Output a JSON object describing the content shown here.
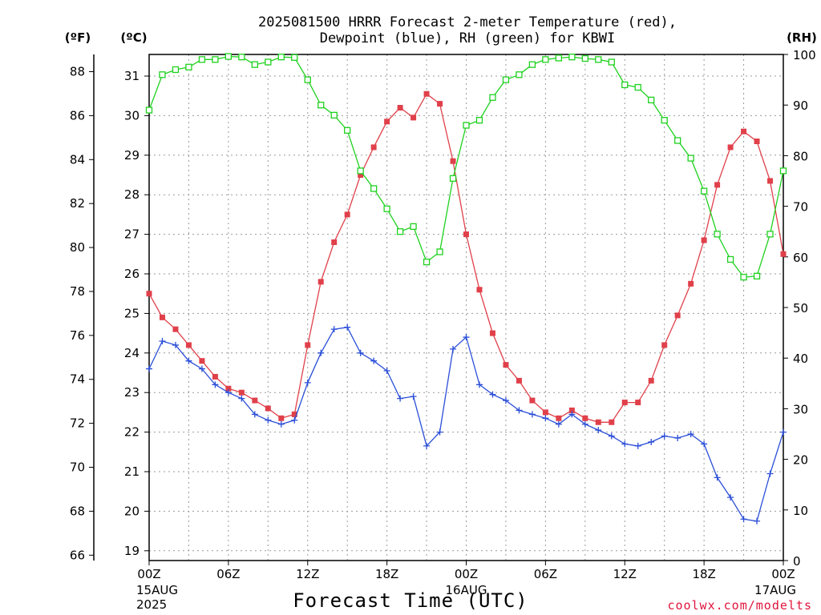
{
  "chart_data": {
    "type": "line",
    "title_line1": "2025081500 HRRR Forecast 2-meter Temperature (red),",
    "title_line2": "Dewpoint (blue), RH (green) for KBWI",
    "left_unit_f": "(ºF)",
    "left_unit_c": "(ºC)",
    "right_unit": "(RH)",
    "xlabel": "Forecast Time (UTC)",
    "credit": "coolwx.com/modelts",
    "x_range": [
      0,
      48
    ],
    "c_range": [
      18.8,
      31.5
    ],
    "rh_range": [
      0,
      100
    ],
    "f_ticks": [
      66,
      68,
      70,
      72,
      74,
      76,
      78,
      80,
      82,
      84,
      86,
      88
    ],
    "c_ticks": [
      19,
      20,
      21,
      22,
      23,
      24,
      25,
      26,
      27,
      28,
      29,
      30,
      31
    ],
    "rh_ticks": [
      0,
      10,
      20,
      30,
      40,
      50,
      60,
      70,
      80,
      90,
      100
    ],
    "x_ticks": [
      {
        "hour": 0,
        "label": "00Z",
        "sub": [
          "15AUG",
          "2025"
        ]
      },
      {
        "hour": 6,
        "label": "06Z",
        "sub": []
      },
      {
        "hour": 12,
        "label": "12Z",
        "sub": []
      },
      {
        "hour": 18,
        "label": "18Z",
        "sub": []
      },
      {
        "hour": 24,
        "label": "00Z",
        "sub": [
          "16AUG"
        ]
      },
      {
        "hour": 30,
        "label": "06Z",
        "sub": []
      },
      {
        "hour": 36,
        "label": "12Z",
        "sub": []
      },
      {
        "hour": 42,
        "label": "18Z",
        "sub": []
      },
      {
        "hour": 48,
        "label": "00Z",
        "sub": [
          "17AUG"
        ]
      }
    ],
    "grid": true,
    "series": [
      {
        "name": "Temperature",
        "axis": "celsius",
        "color": "#e0404a",
        "marker": "filled-square",
        "values": [
          25.5,
          24.9,
          24.6,
          24.2,
          23.8,
          23.4,
          23.1,
          23.0,
          22.8,
          22.6,
          22.35,
          22.45,
          24.2,
          25.8,
          26.8,
          27.5,
          28.5,
          29.2,
          29.85,
          30.2,
          29.95,
          30.55,
          30.3,
          28.85,
          27.0,
          25.6,
          24.5,
          23.7,
          23.3,
          22.8,
          22.5,
          22.35,
          22.55,
          22.35,
          22.25,
          22.25,
          22.75,
          22.75,
          23.3,
          24.2,
          24.95,
          25.75,
          26.85,
          28.25,
          29.2,
          29.6,
          29.35,
          28.35,
          26.5
        ]
      },
      {
        "name": "Dewpoint",
        "axis": "celsius",
        "color": "#2a4ed8",
        "marker": "plus",
        "values": [
          23.6,
          24.3,
          24.2,
          23.8,
          23.6,
          23.2,
          23.0,
          22.85,
          22.45,
          22.3,
          22.2,
          22.3,
          23.25,
          24.0,
          24.6,
          24.65,
          24.0,
          23.8,
          23.55,
          22.85,
          22.9,
          21.65,
          22.0,
          24.1,
          24.4,
          23.2,
          22.95,
          22.8,
          22.55,
          22.45,
          22.35,
          22.2,
          22.45,
          22.2,
          22.05,
          21.9,
          21.7,
          21.65,
          21.75,
          21.9,
          21.85,
          21.95,
          21.7,
          20.85,
          20.35,
          19.8,
          19.75,
          20.95,
          22.0
        ]
      },
      {
        "name": "RH",
        "axis": "rh",
        "color": "#1fd11f",
        "marker": "open-square",
        "values": [
          89,
          96,
          97,
          97.5,
          99,
          99,
          99.6,
          99.5,
          98,
          98.5,
          99.5,
          99.4,
          95,
          90,
          88,
          85,
          77,
          73.5,
          69.5,
          65,
          66,
          59,
          61,
          75.5,
          86,
          87,
          91.5,
          95,
          96,
          98,
          99,
          99.3,
          99.5,
          99.2,
          99,
          98.5,
          94,
          93.5,
          91,
          87,
          83,
          79.5,
          73,
          64.5,
          59.5,
          56,
          56.2,
          64.5,
          77
        ]
      }
    ]
  }
}
